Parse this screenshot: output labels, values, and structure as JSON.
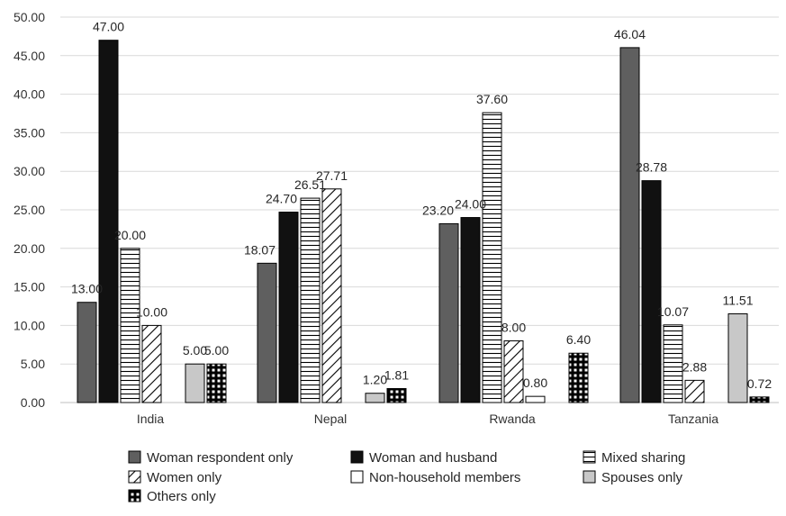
{
  "chart_data": {
    "type": "bar",
    "title": "",
    "xlabel": "",
    "ylabel": "",
    "ylim": [
      0,
      50
    ],
    "yticks": [
      "0.00",
      "5.00",
      "10.00",
      "15.00",
      "20.00",
      "25.00",
      "30.00",
      "35.00",
      "40.00",
      "45.00",
      "50.00"
    ],
    "grid": true,
    "legend_position": "bottom",
    "categories": [
      "India",
      "Nepal",
      "Rwanda",
      "Tanzania"
    ],
    "series": [
      {
        "name": "Woman respondent only",
        "key": "woman-respondent-only",
        "pattern": "solid-dark-gray",
        "color": "#5f5f5f",
        "values": [
          13.0,
          18.07,
          23.2,
          46.04
        ],
        "labels": [
          "13.00",
          "18.07",
          "23.20",
          "46.04"
        ]
      },
      {
        "name": "Woman and husband",
        "key": "woman-and-husband",
        "pattern": "solid-black",
        "color": "#111111",
        "values": [
          47.0,
          24.7,
          24.0,
          28.78
        ],
        "labels": [
          "47.00",
          "24.70",
          "24.00",
          "28.78"
        ]
      },
      {
        "name": "Mixed sharing",
        "key": "mixed-sharing",
        "pattern": "horizontal-lines",
        "color": "#000000",
        "values": [
          20.0,
          26.51,
          37.6,
          10.07
        ],
        "labels": [
          "20.00",
          "26.51",
          "37.60",
          "10.07"
        ]
      },
      {
        "name": "Women only",
        "key": "women-only",
        "pattern": "diagonal-lines",
        "color": "#000000",
        "values": [
          10.0,
          27.71,
          8.0,
          2.88
        ],
        "labels": [
          "10.00",
          "27.71",
          "8.00",
          "2.88"
        ]
      },
      {
        "name": "Non-household members",
        "key": "non-household-members",
        "pattern": "white",
        "color": "#ffffff",
        "values": [
          null,
          null,
          0.8,
          null
        ],
        "labels": [
          null,
          null,
          "0.80",
          null
        ]
      },
      {
        "name": "Spouses only",
        "key": "spouses-only",
        "pattern": "solid-light-gray",
        "color": "#c8c8c8",
        "values": [
          5.0,
          1.2,
          null,
          11.51
        ],
        "labels": [
          "5.00",
          "1.20",
          null,
          "11.51"
        ]
      },
      {
        "name": "Others only",
        "key": "others-only",
        "pattern": "black-with-white-squares",
        "color": "#000000",
        "values": [
          5.0,
          1.81,
          6.4,
          0.72
        ],
        "labels": [
          "5.00",
          "1.81",
          "6.40",
          "0.72"
        ]
      }
    ]
  }
}
